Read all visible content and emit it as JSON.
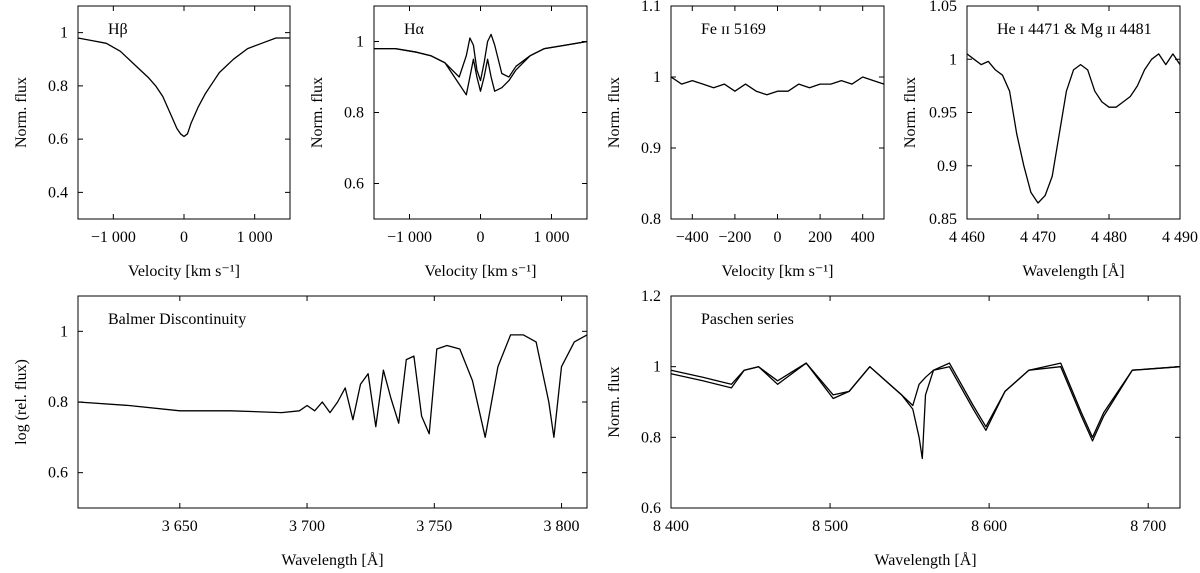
{
  "chart_data": [
    {
      "type": "line",
      "title": "Hβ",
      "xlabel": "Velocity [km s⁻¹]",
      "ylabel": "Norm. flux",
      "xlim": [
        -1500,
        1500
      ],
      "ylim": [
        0.3,
        1.1
      ],
      "xticks": [
        -1000,
        0,
        1000
      ],
      "xtick_labels": [
        "−1 000",
        "0",
        "1 000"
      ],
      "yticks": [
        0.4,
        0.6,
        0.8,
        1.0
      ],
      "ytick_labels": [
        "0.4",
        "0.6",
        "0.8",
        "1"
      ],
      "series": [
        {
          "x": [
            -1500,
            -1300,
            -1100,
            -900,
            -700,
            -500,
            -400,
            -300,
            -200,
            -100,
            -50,
            0,
            50,
            100,
            200,
            300,
            400,
            500,
            700,
            900,
            1100,
            1300,
            1500
          ],
          "y": [
            0.98,
            0.97,
            0.96,
            0.93,
            0.88,
            0.83,
            0.8,
            0.76,
            0.7,
            0.64,
            0.62,
            0.61,
            0.62,
            0.66,
            0.72,
            0.77,
            0.81,
            0.85,
            0.9,
            0.94,
            0.96,
            0.98,
            0.98
          ]
        }
      ]
    },
    {
      "type": "line",
      "title": "Hα",
      "xlabel": "Velocity [km s⁻¹]",
      "ylabel": "Norm. flux",
      "xlim": [
        -1500,
        1500
      ],
      "ylim": [
        0.5,
        1.1
      ],
      "xticks": [
        -1000,
        0,
        1000
      ],
      "xtick_labels": [
        "−1 000",
        "0",
        "1 000"
      ],
      "yticks": [
        0.6,
        0.8,
        1.0
      ],
      "ytick_labels": [
        "0.6",
        "0.8",
        "1"
      ],
      "series": [
        {
          "x": [
            -1500,
            -1200,
            -900,
            -700,
            -500,
            -400,
            -300,
            -200,
            -150,
            -100,
            -50,
            0,
            50,
            100,
            150,
            200,
            300,
            400,
            500,
            700,
            900,
            1200,
            1500
          ],
          "y": [
            0.98,
            0.98,
            0.97,
            0.96,
            0.94,
            0.92,
            0.9,
            0.96,
            1.01,
            0.99,
            0.92,
            0.89,
            0.94,
            1.0,
            1.02,
            0.99,
            0.91,
            0.9,
            0.93,
            0.96,
            0.98,
            0.99,
            1.0
          ]
        },
        {
          "x": [
            -1500,
            -1200,
            -900,
            -700,
            -500,
            -400,
            -300,
            -200,
            -150,
            -100,
            -50,
            0,
            50,
            100,
            150,
            200,
            300,
            400,
            500,
            700,
            900,
            1200,
            1500
          ],
          "y": [
            0.98,
            0.98,
            0.97,
            0.96,
            0.94,
            0.91,
            0.88,
            0.85,
            0.9,
            0.95,
            0.9,
            0.86,
            0.9,
            0.95,
            0.9,
            0.86,
            0.87,
            0.89,
            0.92,
            0.96,
            0.98,
            0.99,
            1.0
          ]
        }
      ]
    },
    {
      "type": "line",
      "title": "Fe ɪɪ 5169",
      "xlabel": "Velocity [km s⁻¹]",
      "ylabel": "Norm. flux",
      "xlim": [
        -500,
        500
      ],
      "ylim": [
        0.8,
        1.1
      ],
      "xticks": [
        -400,
        -200,
        0,
        200,
        400
      ],
      "xtick_labels": [
        "−400",
        "−200",
        "0",
        "200",
        "400"
      ],
      "yticks": [
        0.8,
        0.9,
        1.0,
        1.1
      ],
      "ytick_labels": [
        "0.8",
        "0.9",
        "1",
        "1.1"
      ],
      "series": [
        {
          "x": [
            -500,
            -450,
            -400,
            -350,
            -300,
            -250,
            -200,
            -150,
            -100,
            -50,
            0,
            50,
            100,
            150,
            200,
            250,
            300,
            350,
            400,
            450,
            500
          ],
          "y": [
            1.0,
            0.99,
            0.995,
            0.99,
            0.985,
            0.99,
            0.98,
            0.99,
            0.98,
            0.975,
            0.98,
            0.98,
            0.99,
            0.985,
            0.99,
            0.99,
            0.995,
            0.99,
            1.0,
            0.995,
            0.99
          ]
        }
      ]
    },
    {
      "type": "line",
      "title": "He ɪ 4471 & Mg ɪɪ 4481",
      "xlabel": "Wavelength [Å]",
      "ylabel": "Norm. flux",
      "xlim": [
        4460,
        4490
      ],
      "ylim": [
        0.85,
        1.05
      ],
      "xticks": [
        4460,
        4470,
        4480,
        4490
      ],
      "xtick_labels": [
        "4 460",
        "4 470",
        "4 480",
        "4 490"
      ],
      "yticks": [
        0.85,
        0.9,
        0.95,
        1.0,
        1.05
      ],
      "ytick_labels": [
        "0.85",
        "0.9",
        "0.95",
        "1",
        "1.05"
      ],
      "series": [
        {
          "x": [
            4460,
            4461,
            4462,
            4463,
            4464,
            4465,
            4466,
            4467,
            4468,
            4469,
            4470,
            4471,
            4472,
            4473,
            4474,
            4475,
            4476,
            4477,
            4478,
            4479,
            4480,
            4481,
            4482,
            4483,
            4484,
            4485,
            4486,
            4487,
            4488,
            4489,
            4490
          ],
          "y": [
            1.005,
            1.0,
            0.995,
            0.998,
            0.99,
            0.985,
            0.97,
            0.93,
            0.9,
            0.875,
            0.865,
            0.872,
            0.89,
            0.93,
            0.97,
            0.99,
            0.995,
            0.99,
            0.97,
            0.96,
            0.955,
            0.955,
            0.96,
            0.965,
            0.975,
            0.99,
            1.0,
            1.005,
            0.995,
            1.005,
            0.995
          ]
        }
      ]
    },
    {
      "type": "line",
      "title": "Balmer Discontinuity",
      "xlabel": "Wavelength [Å]",
      "ylabel": "log (rel. flux)",
      "xlim": [
        3610,
        3810
      ],
      "ylim": [
        0.5,
        1.1
      ],
      "xticks": [
        3650,
        3700,
        3750,
        3800
      ],
      "xtick_labels": [
        "3 650",
        "3 700",
        "3 750",
        "3 800"
      ],
      "yticks": [
        0.6,
        0.8,
        1.0
      ],
      "ytick_labels": [
        "0.6",
        "0.8",
        "1"
      ],
      "series": [
        {
          "x": [
            3610,
            3630,
            3650,
            3670,
            3690,
            3697,
            3700,
            3703,
            3706,
            3709,
            3712,
            3715,
            3718,
            3721,
            3724,
            3727,
            3730,
            3733,
            3736,
            3739,
            3742,
            3745,
            3748,
            3751,
            3755,
            3760,
            3765,
            3770,
            3775,
            3780,
            3785,
            3790,
            3795,
            3797,
            3800,
            3805,
            3810
          ],
          "y": [
            0.8,
            0.79,
            0.775,
            0.775,
            0.77,
            0.775,
            0.79,
            0.775,
            0.8,
            0.77,
            0.8,
            0.84,
            0.75,
            0.85,
            0.88,
            0.73,
            0.89,
            0.81,
            0.74,
            0.92,
            0.93,
            0.76,
            0.71,
            0.95,
            0.96,
            0.95,
            0.86,
            0.7,
            0.9,
            0.99,
            0.99,
            0.97,
            0.8,
            0.7,
            0.9,
            0.97,
            0.99
          ]
        }
      ]
    },
    {
      "type": "line",
      "title": "Paschen series",
      "xlabel": "Wavelength [Å]",
      "ylabel": "Norm. flux",
      "xlim": [
        8400,
        8720
      ],
      "ylim": [
        0.6,
        1.2
      ],
      "xticks": [
        8400,
        8500,
        8600,
        8700
      ],
      "xtick_labels": [
        "8 400",
        "8 500",
        "8 600",
        "8 700"
      ],
      "yticks": [
        0.6,
        0.8,
        1.0,
        1.2
      ],
      "ytick_labels": [
        "0.6",
        "0.8",
        "1",
        "1.2"
      ],
      "series": [
        {
          "x": [
            8400,
            8420,
            8438,
            8446,
            8455,
            8467,
            8485,
            8502,
            8512,
            8525,
            8545,
            8552,
            8556,
            8558,
            8560,
            8565,
            8575,
            8590,
            8598,
            8610,
            8625,
            8645,
            8658,
            8665,
            8672,
            8690,
            8720
          ],
          "y": [
            0.98,
            0.96,
            0.94,
            0.99,
            1.0,
            0.95,
            1.01,
            0.91,
            0.93,
            1.0,
            0.92,
            0.88,
            0.8,
            0.74,
            0.92,
            0.99,
            1.0,
            0.88,
            0.82,
            0.93,
            0.99,
            1.0,
            0.86,
            0.79,
            0.86,
            0.99,
            1.0
          ]
        },
        {
          "x": [
            8400,
            8420,
            8438,
            8446,
            8455,
            8467,
            8485,
            8502,
            8512,
            8525,
            8545,
            8552,
            8556,
            8560,
            8565,
            8575,
            8590,
            8598,
            8610,
            8625,
            8645,
            8658,
            8665,
            8672,
            8690,
            8720
          ],
          "y": [
            0.99,
            0.97,
            0.95,
            0.99,
            1.0,
            0.96,
            1.01,
            0.92,
            0.93,
            1.0,
            0.92,
            0.89,
            0.95,
            0.97,
            0.99,
            1.01,
            0.89,
            0.83,
            0.93,
            0.99,
            1.01,
            0.87,
            0.8,
            0.87,
            0.99,
            1.0
          ]
        }
      ]
    }
  ]
}
